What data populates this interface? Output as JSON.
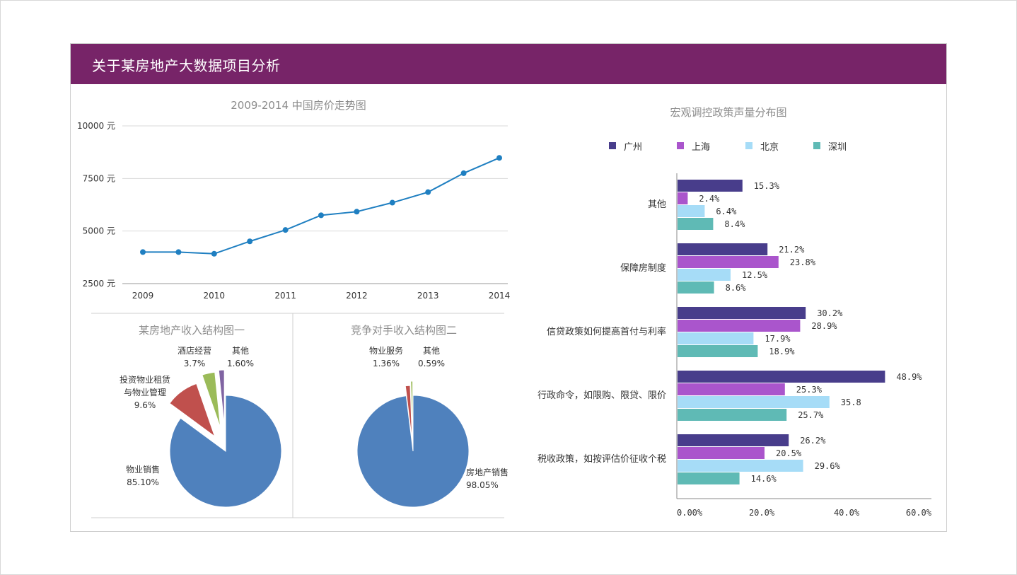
{
  "header": {
    "title": "关于某房地产大数据项目分析"
  },
  "chart_data": [
    {
      "id": "price_trend",
      "type": "line",
      "title": "2009-2014 中国房价走势图",
      "y_ticks": [
        "10000 元",
        "7500 元",
        "5000 元",
        "2500 元"
      ],
      "y_tick_values": [
        10000,
        7500,
        5000,
        2500
      ],
      "x_ticks": [
        "2009",
        "2010",
        "2011",
        "2012",
        "2013",
        "2014"
      ],
      "x_tick_values": [
        2009,
        2010,
        2011,
        2012,
        2013,
        2014
      ],
      "ylim": [
        2500,
        10000
      ],
      "xlim": [
        2009,
        2014
      ],
      "grid": true,
      "color": "#1f7fc1",
      "points": [
        {
          "x": 2009.0,
          "y": 4000
        },
        {
          "x": 2009.5,
          "y": 4000
        },
        {
          "x": 2010.0,
          "y": 3920
        },
        {
          "x": 2010.5,
          "y": 4510
        },
        {
          "x": 2011.0,
          "y": 5050
        },
        {
          "x": 2011.5,
          "y": 5750
        },
        {
          "x": 2012.0,
          "y": 5920
        },
        {
          "x": 2012.5,
          "y": 6350
        },
        {
          "x": 2013.0,
          "y": 6850
        },
        {
          "x": 2013.5,
          "y": 7750
        },
        {
          "x": 2014.0,
          "y": 8480
        }
      ]
    },
    {
      "id": "pie_own",
      "type": "pie",
      "title": "某房地产收入结构图一",
      "slices": [
        {
          "name": "物业销售",
          "label_lines": [
            "物业销售"
          ],
          "value_label": "85.10%",
          "value": 85.1,
          "color": "#4f81bd"
        },
        {
          "name": "投资物业租赁与物业管理",
          "label_lines": [
            "投资物业租赁",
            "与物业管理"
          ],
          "value_label": "9.6%",
          "value": 9.6,
          "color": "#c0504d"
        },
        {
          "name": "酒店经营",
          "label_lines": [
            "酒店经营"
          ],
          "value_label": "3.7%",
          "value": 3.7,
          "color": "#9bbb59"
        },
        {
          "name": "其他",
          "label_lines": [
            "其他"
          ],
          "value_label": "1.60%",
          "value": 1.6,
          "color": "#8064a2"
        }
      ]
    },
    {
      "id": "pie_rival",
      "type": "pie",
      "title": "竞争对手收入结构图二",
      "slices": [
        {
          "name": "房地产销售",
          "label_lines": [
            "房地产销售"
          ],
          "value_label": "98.05%",
          "value": 98.05,
          "color": "#4f81bd"
        },
        {
          "name": "物业服务",
          "label_lines": [
            "物业服务"
          ],
          "value_label": "1.36%",
          "value": 1.36,
          "color": "#c0504d"
        },
        {
          "name": "其他",
          "label_lines": [
            "其他"
          ],
          "value_label": "0.59%",
          "value": 0.59,
          "color": "#9bbb59"
        }
      ]
    },
    {
      "id": "policy_bar",
      "type": "bar",
      "orientation": "horizontal",
      "title": "宏观调控政策声量分布图",
      "legend_position": "top",
      "categories": [
        "其他",
        "保障房制度",
        "信贷政策如何提高首付与利率",
        "行政命令，如限购、限贷、限价",
        "税收政策，如按评估价征收个税"
      ],
      "series": [
        {
          "name": "广州",
          "color": "#483d8b",
          "values": [
            15.3,
            21.2,
            30.2,
            48.9,
            26.2
          ],
          "labels": [
            "15.3%",
            "21.2%",
            "30.2%",
            "48.9%",
            "26.2%"
          ]
        },
        {
          "name": "上海",
          "color": "#aa55cc",
          "values": [
            2.4,
            23.8,
            28.9,
            25.3,
            20.5
          ],
          "labels": [
            "2.4%",
            "23.8%",
            "28.9%",
            "25.3%",
            "20.5%"
          ]
        },
        {
          "name": "北京",
          "color": "#a6dcf7",
          "values": [
            6.4,
            12.5,
            17.9,
            35.8,
            29.6
          ],
          "labels": [
            "6.4%",
            "12.5%",
            "17.9%",
            "35.8",
            "29.6%"
          ]
        },
        {
          "name": "深圳",
          "color": "#5fbab5",
          "values": [
            8.4,
            8.6,
            18.9,
            25.7,
            14.6
          ],
          "labels": [
            "8.4%",
            "8.6%",
            "18.9%",
            "25.7%",
            "14.6%"
          ]
        }
      ],
      "x_ticks": [
        "0.00%",
        "20.0%",
        "40.0%",
        "60.0%"
      ],
      "x_tick_values": [
        0,
        20,
        40,
        60
      ],
      "xlim": [
        0,
        60
      ]
    }
  ]
}
